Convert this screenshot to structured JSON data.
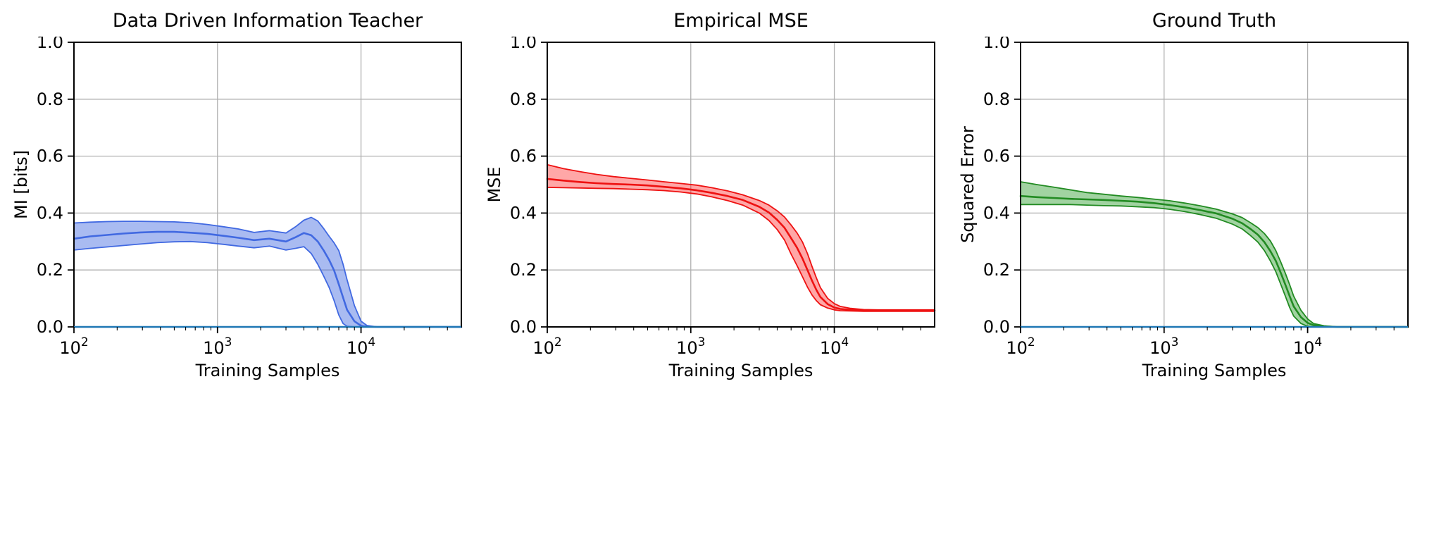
{
  "figure": {
    "background": "#ffffff",
    "grid_color": "#b0b0b0",
    "spine_color": "#000000",
    "text_color": "#000000"
  },
  "chart_data": [
    {
      "type": "line",
      "title": "Data Driven Information Teacher",
      "xlabel": "Training Samples",
      "ylabel": "MI [bits]",
      "xscale": "log",
      "xlim": [
        100,
        50000
      ],
      "ylim": [
        0.0,
        1.0
      ],
      "xticks": [
        100,
        1000,
        10000
      ],
      "xtick_labels": [
        "10²",
        "10³",
        "10⁴"
      ],
      "yticks": [
        0.0,
        0.2,
        0.4,
        0.6,
        0.8,
        1.0
      ],
      "grid": true,
      "legend": "none",
      "line_color": "#4169e1",
      "band_color": "#4169e1",
      "band_opacity": 0.45,
      "x": [
        100,
        130,
        170,
        220,
        290,
        380,
        500,
        650,
        850,
        1100,
        1400,
        1800,
        2300,
        3000,
        3500,
        4000,
        4500,
        5000,
        5500,
        6000,
        6500,
        7000,
        7500,
        8000,
        9000,
        10000,
        11000,
        13000,
        16000,
        20000,
        30000,
        50000
      ],
      "mean": [
        0.31,
        0.318,
        0.323,
        0.328,
        0.332,
        0.334,
        0.334,
        0.331,
        0.327,
        0.32,
        0.313,
        0.305,
        0.31,
        0.3,
        0.315,
        0.33,
        0.322,
        0.3,
        0.268,
        0.235,
        0.198,
        0.15,
        0.103,
        0.06,
        0.02,
        0.004,
        0.001,
        0,
        0,
        0,
        0,
        0
      ],
      "upper": [
        0.365,
        0.368,
        0.37,
        0.371,
        0.371,
        0.37,
        0.369,
        0.366,
        0.36,
        0.352,
        0.344,
        0.332,
        0.338,
        0.33,
        0.352,
        0.375,
        0.385,
        0.372,
        0.345,
        0.318,
        0.295,
        0.268,
        0.22,
        0.165,
        0.075,
        0.02,
        0.005,
        0,
        0,
        0,
        0,
        0
      ],
      "lower": [
        0.27,
        0.276,
        0.281,
        0.286,
        0.291,
        0.296,
        0.299,
        0.3,
        0.296,
        0.29,
        0.284,
        0.278,
        0.284,
        0.27,
        0.276,
        0.282,
        0.258,
        0.22,
        0.178,
        0.138,
        0.092,
        0.042,
        0.012,
        0.002,
        0,
        0,
        0,
        0,
        0,
        0,
        0,
        0
      ],
      "reference_line": {
        "y": 0.0,
        "color": "#1f77b4"
      }
    },
    {
      "type": "line",
      "title": "Empirical MSE",
      "xlabel": "Training Samples",
      "ylabel": "MSE",
      "xscale": "log",
      "xlim": [
        100,
        50000
      ],
      "ylim": [
        0.0,
        1.0
      ],
      "xticks": [
        100,
        1000,
        10000
      ],
      "xtick_labels": [
        "10²",
        "10³",
        "10⁴"
      ],
      "yticks": [
        0.0,
        0.2,
        0.4,
        0.6,
        0.8,
        1.0
      ],
      "grid": true,
      "legend": "none",
      "line_color": "#ee1111",
      "band_color": "#ff2222",
      "band_opacity": 0.4,
      "x": [
        100,
        130,
        170,
        220,
        290,
        380,
        500,
        650,
        850,
        1100,
        1400,
        1800,
        2300,
        3000,
        3500,
        4000,
        4500,
        5000,
        5500,
        6000,
        6500,
        7000,
        7500,
        8000,
        9000,
        10000,
        11000,
        13000,
        16000,
        20000,
        30000,
        50000
      ],
      "mean": [
        0.52,
        0.514,
        0.509,
        0.505,
        0.502,
        0.5,
        0.497,
        0.492,
        0.487,
        0.48,
        0.471,
        0.46,
        0.446,
        0.422,
        0.402,
        0.376,
        0.348,
        0.312,
        0.278,
        0.24,
        0.2,
        0.162,
        0.13,
        0.105,
        0.08,
        0.068,
        0.063,
        0.06,
        0.058,
        0.058,
        0.058,
        0.058
      ],
      "upper": [
        0.57,
        0.556,
        0.545,
        0.536,
        0.528,
        0.522,
        0.516,
        0.51,
        0.504,
        0.498,
        0.489,
        0.478,
        0.464,
        0.444,
        0.428,
        0.408,
        0.386,
        0.358,
        0.33,
        0.298,
        0.258,
        0.212,
        0.172,
        0.138,
        0.1,
        0.082,
        0.072,
        0.065,
        0.061,
        0.06,
        0.06,
        0.06
      ],
      "lower": [
        0.49,
        0.489,
        0.488,
        0.487,
        0.486,
        0.484,
        0.482,
        0.479,
        0.474,
        0.467,
        0.457,
        0.444,
        0.428,
        0.4,
        0.374,
        0.342,
        0.305,
        0.256,
        0.215,
        0.176,
        0.14,
        0.112,
        0.092,
        0.078,
        0.066,
        0.06,
        0.057,
        0.056,
        0.055,
        0.055,
        0.055,
        0.055
      ]
    },
    {
      "type": "line",
      "title": "Ground Truth",
      "xlabel": "Training Samples",
      "ylabel": "Squared Error",
      "xscale": "log",
      "xlim": [
        100,
        50000
      ],
      "ylim": [
        0.0,
        1.0
      ],
      "xticks": [
        100,
        1000,
        10000
      ],
      "xtick_labels": [
        "10²",
        "10³",
        "10⁴"
      ],
      "yticks": [
        0.0,
        0.2,
        0.4,
        0.6,
        0.8,
        1.0
      ],
      "grid": true,
      "legend": "none",
      "line_color": "#228b22",
      "band_color": "#2e9e2e",
      "band_opacity": 0.45,
      "x": [
        100,
        130,
        170,
        220,
        290,
        380,
        500,
        650,
        850,
        1100,
        1400,
        1800,
        2300,
        3000,
        3500,
        4000,
        4500,
        5000,
        5500,
        6000,
        6500,
        7000,
        7500,
        8000,
        9000,
        10000,
        11000,
        13000,
        16000,
        20000,
        30000,
        50000
      ],
      "mean": [
        0.46,
        0.456,
        0.453,
        0.45,
        0.448,
        0.446,
        0.443,
        0.44,
        0.435,
        0.428,
        0.42,
        0.41,
        0.399,
        0.38,
        0.364,
        0.344,
        0.324,
        0.298,
        0.266,
        0.232,
        0.19,
        0.148,
        0.108,
        0.072,
        0.034,
        0.014,
        0.006,
        0.002,
        0,
        0,
        0,
        0
      ],
      "upper": [
        0.51,
        0.5,
        0.491,
        0.482,
        0.472,
        0.466,
        0.46,
        0.455,
        0.449,
        0.443,
        0.435,
        0.425,
        0.414,
        0.397,
        0.384,
        0.366,
        0.349,
        0.328,
        0.302,
        0.268,
        0.228,
        0.188,
        0.148,
        0.108,
        0.058,
        0.028,
        0.012,
        0.004,
        0,
        0,
        0,
        0
      ],
      "lower": [
        0.43,
        0.43,
        0.43,
        0.43,
        0.428,
        0.426,
        0.425,
        0.422,
        0.419,
        0.413,
        0.405,
        0.394,
        0.382,
        0.361,
        0.344,
        0.321,
        0.298,
        0.268,
        0.232,
        0.194,
        0.15,
        0.108,
        0.068,
        0.038,
        0.012,
        0.002,
        0,
        0,
        0,
        0,
        0,
        0
      ],
      "reference_line": {
        "y": 0.0,
        "color": "#1f77b4"
      }
    }
  ]
}
